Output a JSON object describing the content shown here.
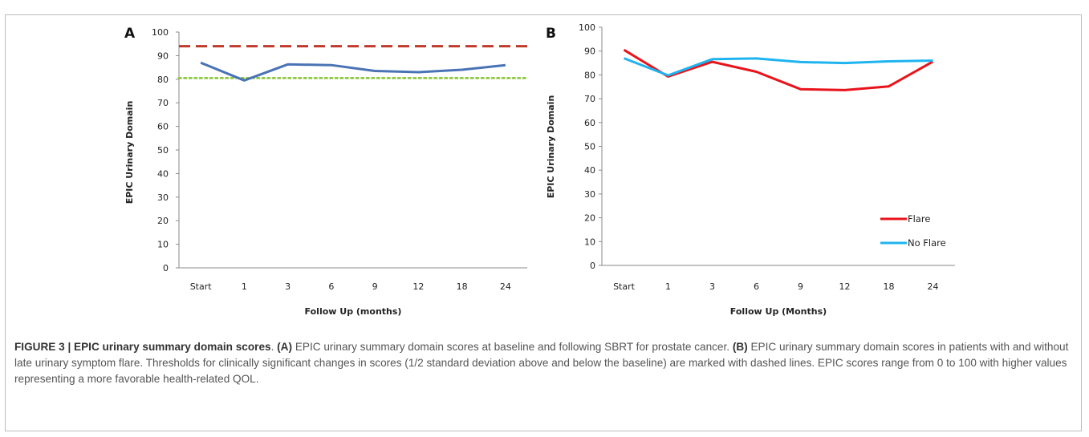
{
  "chart_data": [
    {
      "type": "line",
      "panel_label": "A",
      "categories": [
        "Start",
        "1",
        "3",
        "6",
        "9",
        "12",
        "18",
        "24"
      ],
      "series": [
        {
          "values": [
            87,
            79.5,
            86.3,
            86,
            83.5,
            83,
            84,
            86
          ],
          "color": "#4a73b5"
        }
      ],
      "reference_lines": [
        {
          "value": 94,
          "style": "dashed",
          "color": "#c0392b"
        },
        {
          "value": 80.5,
          "style": "dotted",
          "color": "#8cc63f"
        }
      ],
      "xlabel": "Follow Up (months)",
      "ylabel": "EPIC Urinary Domain",
      "ylim": [
        0,
        100
      ],
      "yticks": [
        "0",
        "10",
        "20",
        "30",
        "40",
        "50",
        "60",
        "70",
        "80",
        "90",
        "100"
      ],
      "grid": false
    },
    {
      "type": "line",
      "panel_label": "B",
      "categories": [
        "Start",
        "1",
        "3",
        "6",
        "9",
        "12",
        "18",
        "24"
      ],
      "series": [
        {
          "name": "Flare",
          "values": [
            90.5,
            79.3,
            85.5,
            81.3,
            74,
            73.6,
            75.2,
            85.6
          ],
          "color": "#e8141b"
        },
        {
          "name": "No Flare",
          "values": [
            87,
            79.8,
            86.6,
            86.9,
            85.4,
            85,
            85.7,
            86
          ],
          "color": "#1fb4ef"
        }
      ],
      "xlabel": "Follow Up (Months)",
      "ylabel": "EPIC Urinary Domain",
      "ylim": [
        0,
        100
      ],
      "yticks": [
        "0",
        "10",
        "20",
        "30",
        "40",
        "50",
        "60",
        "70",
        "80",
        "90",
        "100"
      ],
      "legend_position": "bottom-right",
      "grid": false
    }
  ],
  "caption": {
    "figure_label": "FIGURE 3 | EPIC urinary summary domain scores",
    "part_a_label": "(A)",
    "part_a_text": "EPIC urinary summary domain scores at baseline and following SBRT for prostate cancer.",
    "part_b_label": "(B)",
    "part_b_text": "EPIC urinary summary domain scores in patients with and without late urinary symptom flare. Thresholds for clinically significant changes in scores (1/2 standard deviation above and below the baseline) are marked with dashed lines. EPIC scores range from 0 to 100 with higher values representing a more favorable health-related QOL."
  }
}
